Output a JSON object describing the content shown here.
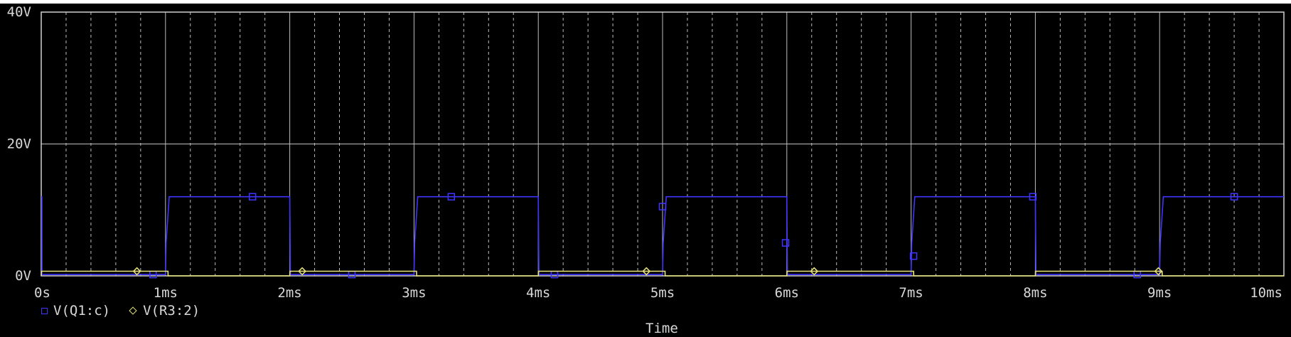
{
  "chart_data": {
    "type": "line",
    "xlabel": "Time",
    "x_ticks": [
      "0s",
      "1ms",
      "2ms",
      "3ms",
      "4ms",
      "5ms",
      "6ms",
      "7ms",
      "8ms",
      "9ms",
      "10ms"
    ],
    "y_ticks": [
      "0V",
      "20V",
      "40V"
    ],
    "xlim_ms": [
      0,
      10
    ],
    "ylim": [
      0,
      40
    ],
    "grid": true,
    "legend_placement": "bottom-left",
    "series": [
      {
        "name": "V(Q1:c)",
        "color": "#3f35ff",
        "marker": "square",
        "x_ms": [
          0,
          0.005,
          0.006,
          1.0,
          1.005,
          1.03,
          2.0,
          2.005,
          2.01,
          3.0,
          3.005,
          3.03,
          4.0,
          4.005,
          4.01,
          5.0,
          5.005,
          5.03,
          6.0,
          6.005,
          6.01,
          7.0,
          7.005,
          7.03,
          8.0,
          8.005,
          8.01,
          9.0,
          9.005,
          9.03,
          10.0
        ],
        "y": [
          12,
          12,
          0.2,
          0.2,
          5,
          12,
          12,
          0.2,
          0.2,
          0.2,
          5,
          12,
          12,
          0.2,
          0.2,
          0.2,
          5,
          12,
          12,
          0.2,
          0.2,
          0.2,
          5,
          12,
          12,
          0.2,
          0.2,
          0.2,
          5,
          12,
          12
        ],
        "markers_x_ms": [
          0.9,
          1.7,
          2.5,
          3.3,
          4.13,
          5.0,
          5.99,
          7.02,
          7.98,
          8.82,
          9.6
        ],
        "markers_y": [
          0.2,
          12,
          0.2,
          12,
          0.2,
          10.5,
          5,
          3,
          12,
          0.2,
          12
        ]
      },
      {
        "name": "V(R3:2)",
        "color": "#e8e37a",
        "marker": "diamond",
        "x_ms": [
          0,
          0.001,
          1.02,
          1.021,
          2.0,
          2.001,
          3.02,
          3.021,
          4.0,
          4.001,
          5.02,
          5.021,
          6.0,
          6.001,
          7.02,
          7.021,
          8.0,
          8.001,
          9.02,
          9.021,
          10.0
        ],
        "y": [
          0,
          0.7,
          0.7,
          0,
          0,
          0.7,
          0.7,
          0,
          0,
          0.7,
          0.7,
          0,
          0,
          0.7,
          0.7,
          0,
          0,
          0.7,
          0.7,
          0,
          0
        ],
        "markers_x_ms": [
          0.77,
          2.1,
          4.87,
          6.22,
          8.99
        ],
        "markers_y": [
          0.7,
          0.7,
          0.7,
          0.7,
          0.7
        ]
      }
    ]
  }
}
